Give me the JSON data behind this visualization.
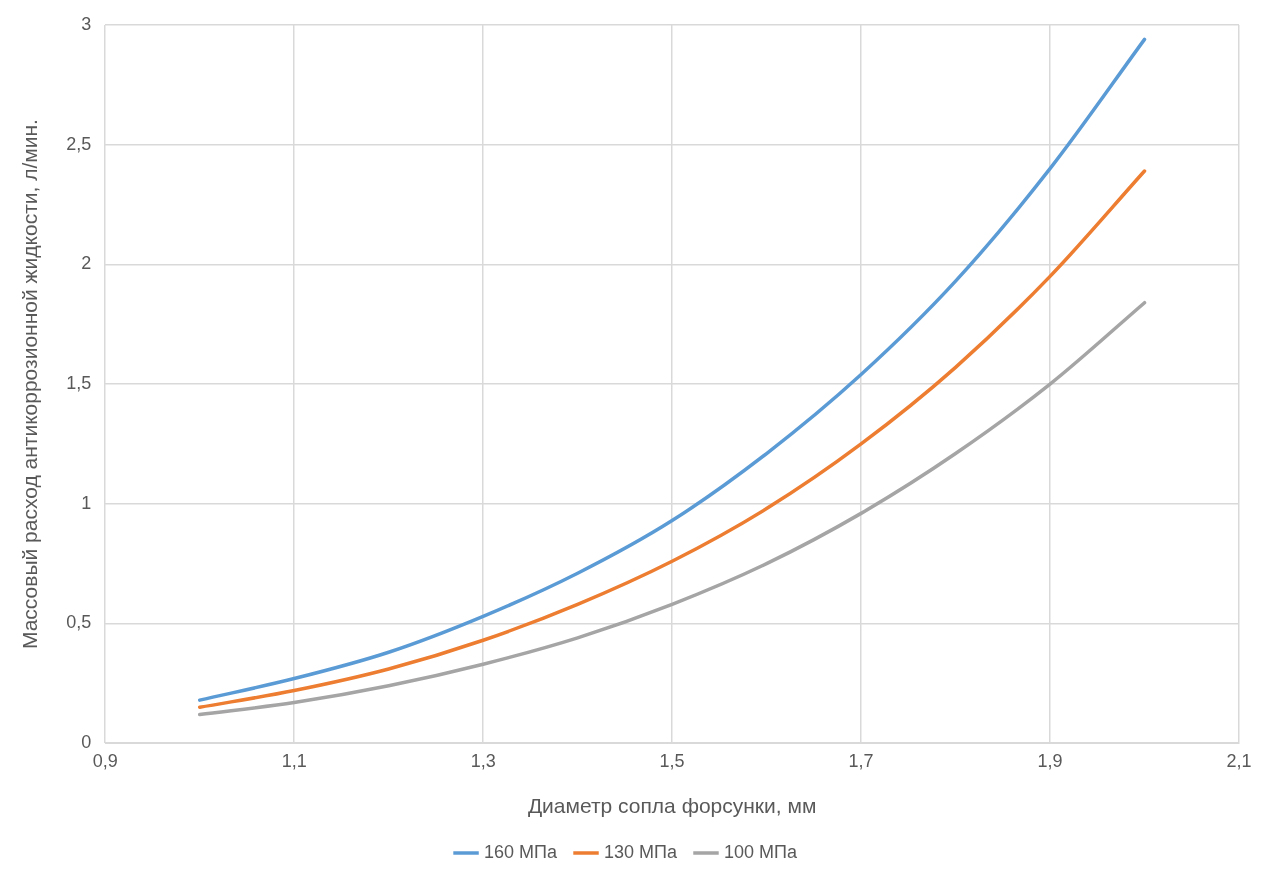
{
  "chart_data": {
    "type": "line",
    "xlabel": "Диаметр сопла форсунки, мм",
    "ylabel": "Массовый расход антикоррозионной жидкости, л/мин.",
    "x": [
      1.0,
      1.1,
      1.2,
      1.3,
      1.4,
      1.5,
      1.6,
      1.7,
      1.8,
      1.9,
      2.0
    ],
    "series": [
      {
        "name": "160 МПа",
        "color": "#5b9bd5",
        "values": [
          0.18,
          0.27,
          0.38,
          0.53,
          0.71,
          0.93,
          1.21,
          1.54,
          1.93,
          2.4,
          2.94
        ]
      },
      {
        "name": "130 МПа",
        "color": "#ed7d31",
        "values": [
          0.15,
          0.22,
          0.31,
          0.43,
          0.58,
          0.76,
          0.98,
          1.25,
          1.57,
          1.95,
          2.39
        ]
      },
      {
        "name": "100 МПа",
        "color": "#a5a5a5",
        "values": [
          0.12,
          0.17,
          0.24,
          0.33,
          0.44,
          0.58,
          0.75,
          0.96,
          1.21,
          1.5,
          1.84
        ]
      }
    ],
    "xlim": [
      0.9,
      2.1
    ],
    "xticks": [
      {
        "value": 0.9,
        "label": "0,9"
      },
      {
        "value": 1.1,
        "label": "1,1"
      },
      {
        "value": 1.3,
        "label": "1,3"
      },
      {
        "value": 1.5,
        "label": "1,5"
      },
      {
        "value": 1.7,
        "label": "1,7"
      },
      {
        "value": 1.9,
        "label": "1,9"
      },
      {
        "value": 2.1,
        "label": "2,1"
      }
    ],
    "ylim": [
      0,
      3
    ],
    "yticks": [
      0,
      {
        "value": 0.5,
        "label": "0,5"
      },
      1,
      {
        "value": 1.5,
        "label": "1,5"
      },
      2,
      {
        "value": 2.5,
        "label": "2,5"
      },
      3
    ],
    "grid": true,
    "legend": "bottom",
    "marker": "none",
    "line_style": "solid"
  }
}
